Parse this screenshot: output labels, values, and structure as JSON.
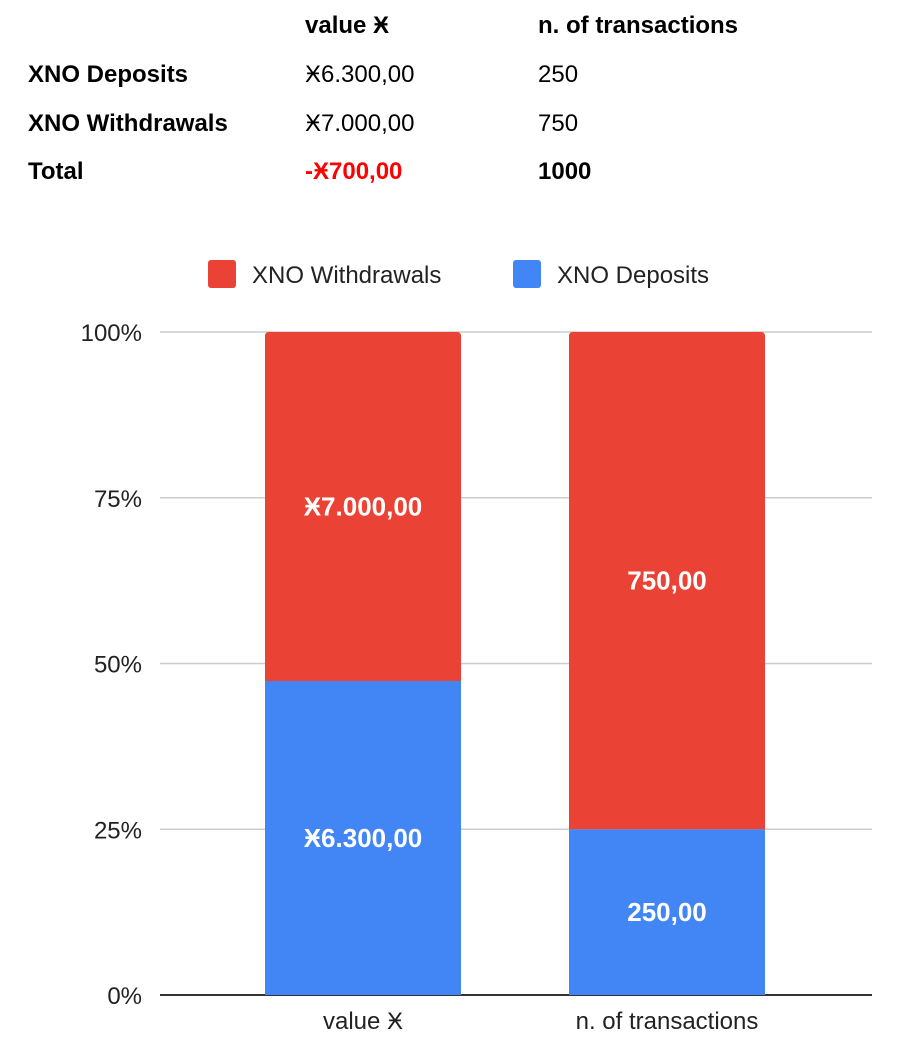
{
  "table": {
    "headers": [
      "value Ӿ",
      "n. of transactions"
    ],
    "rows": [
      {
        "label": "XNO Deposits",
        "value": "Ӿ6.300,00",
        "count": "250"
      },
      {
        "label": "XNO Withdrawals",
        "value": "Ӿ7.000,00",
        "count": "750"
      },
      {
        "label": "Total",
        "value": "-Ӿ700,00",
        "count": "1000"
      }
    ],
    "negative_color": "#ff0000"
  },
  "chart_data": {
    "type": "bar",
    "stacked": "percent",
    "categories": [
      "value Ӿ",
      "n. of transactions"
    ],
    "series": [
      {
        "name": "XNO Deposits",
        "values": [
          6300,
          250
        ],
        "labels": [
          "Ӿ6.300,00",
          "250,00"
        ],
        "color": "#4285f4"
      },
      {
        "name": "XNO Withdrawals",
        "values": [
          7000,
          750
        ],
        "labels": [
          "Ӿ7.000,00",
          "750,00"
        ],
        "color": "#ea4335"
      }
    ],
    "legend": [
      {
        "name": "XNO Withdrawals",
        "color": "#ea4335"
      },
      {
        "name": "XNO Deposits",
        "color": "#4285f4"
      }
    ],
    "legend_position": "top",
    "y_ticks": [
      "0%",
      "25%",
      "50%",
      "75%",
      "100%"
    ],
    "ylim": [
      0,
      100
    ],
    "grid": true
  }
}
